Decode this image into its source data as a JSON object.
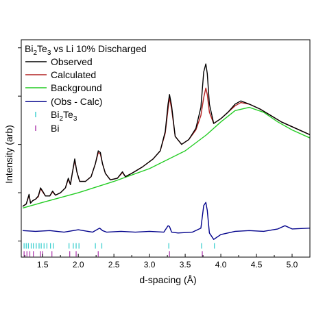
{
  "chart_data": {
    "type": "line",
    "title_parts": {
      "pre": "Bi",
      "sub1": "2",
      "mid": "Te",
      "sub2": "3",
      "post": " vs Li 10% Discharged"
    },
    "xlabel": "d-spacing (Å)",
    "ylabel": "Intensity (arb)",
    "xlim": [
      1.2,
      5.25
    ],
    "x_ticks": [
      1.5,
      2.0,
      2.5,
      3.0,
      3.5,
      4.0,
      4.5,
      5.0
    ],
    "x_tick_labels": [
      "1.5",
      "2.0",
      "2.5",
      "3.0",
      "3.5",
      "4.0",
      "4.5",
      "5.0"
    ],
    "ylim": [
      -3.0,
      10.5
    ],
    "grid": false,
    "legend_position": "top-left",
    "legend": [
      {
        "label": "Observed",
        "color": "#000000",
        "type": "line"
      },
      {
        "label": "Calculated",
        "color": "#b22222",
        "type": "line"
      },
      {
        "label": "Background",
        "color": "#22cc22",
        "type": "line"
      },
      {
        "label": "(Obs - Calc)",
        "color": "#00008b",
        "type": "line"
      },
      {
        "label_pre": "Bi",
        "label_sub1": "2",
        "label_mid": "Te",
        "label_sub2": "3",
        "color": "#40d0d0",
        "type": "tick"
      },
      {
        "label": "Bi",
        "color": "#b040b0",
        "type": "tick"
      }
    ],
    "series": [
      {
        "name": "Observed",
        "color": "#000000",
        "x": [
          1.22,
          1.27,
          1.31,
          1.33,
          1.36,
          1.4,
          1.44,
          1.47,
          1.5,
          1.54,
          1.6,
          1.64,
          1.68,
          1.75,
          1.82,
          1.86,
          1.89,
          1.92,
          1.95,
          1.98,
          2.02,
          2.1,
          2.18,
          2.24,
          2.28,
          2.31,
          2.34,
          2.38,
          2.45,
          2.55,
          2.62,
          2.66,
          2.75,
          2.9,
          3.05,
          3.15,
          3.22,
          3.26,
          3.28,
          3.31,
          3.36,
          3.45,
          3.55,
          3.65,
          3.72,
          3.76,
          3.79,
          3.81,
          3.84,
          3.9,
          4.0,
          4.1,
          4.2,
          4.28,
          4.4,
          4.55,
          4.7,
          4.85,
          5.0,
          5.15,
          5.25
        ],
        "y": [
          0.15,
          0.3,
          0.9,
          0.35,
          0.5,
          0.6,
          0.8,
          1.3,
          1.1,
          0.8,
          0.8,
          1.1,
          0.85,
          1.0,
          1.3,
          1.9,
          1.5,
          2.3,
          3.1,
          2.3,
          1.7,
          1.7,
          2.0,
          2.8,
          3.6,
          3.5,
          2.8,
          2.2,
          1.8,
          1.9,
          2.3,
          2.0,
          2.2,
          2.6,
          3.1,
          3.6,
          4.8,
          6.5,
          7.1,
          6.4,
          4.5,
          4.0,
          4.3,
          5.0,
          6.3,
          8.5,
          9.0,
          8.4,
          6.5,
          5.3,
          5.6,
          6.0,
          6.5,
          6.7,
          6.5,
          6.2,
          5.8,
          5.4,
          5.1,
          4.8,
          4.6
        ]
      },
      {
        "name": "Calculated",
        "color": "#b22222",
        "x": [
          1.22,
          1.27,
          1.31,
          1.33,
          1.36,
          1.4,
          1.44,
          1.47,
          1.5,
          1.54,
          1.6,
          1.64,
          1.68,
          1.75,
          1.82,
          1.86,
          1.89,
          1.92,
          1.95,
          1.98,
          2.02,
          2.1,
          2.18,
          2.24,
          2.28,
          2.31,
          2.34,
          2.38,
          2.45,
          2.55,
          2.62,
          2.66,
          2.75,
          2.9,
          3.05,
          3.15,
          3.22,
          3.26,
          3.28,
          3.31,
          3.36,
          3.45,
          3.55,
          3.65,
          3.72,
          3.76,
          3.79,
          3.81,
          3.84,
          3.9,
          4.0,
          4.1,
          4.2,
          4.28,
          4.4,
          4.55,
          4.7,
          4.85,
          5.0,
          5.15,
          5.25
        ],
        "y": [
          0.15,
          0.3,
          0.85,
          0.35,
          0.5,
          0.6,
          0.75,
          1.25,
          1.05,
          0.8,
          0.8,
          1.05,
          0.85,
          1.0,
          1.3,
          1.85,
          1.5,
          2.3,
          3.0,
          2.3,
          1.7,
          1.7,
          2.0,
          2.8,
          3.5,
          3.4,
          2.8,
          2.2,
          1.8,
          1.9,
          2.25,
          2.0,
          2.2,
          2.6,
          3.1,
          3.6,
          4.7,
          6.2,
          6.9,
          6.2,
          4.5,
          4.0,
          4.3,
          4.9,
          5.8,
          6.9,
          7.5,
          7.1,
          6.0,
          5.3,
          5.6,
          6.0,
          6.4,
          6.6,
          6.5,
          6.2,
          5.8,
          5.4,
          5.1,
          4.8,
          4.6
        ]
      },
      {
        "name": "Background",
        "color": "#22cc22",
        "x": [
          1.22,
          1.5,
          2.0,
          2.5,
          3.0,
          3.5,
          3.8,
          4.0,
          4.2,
          4.4,
          4.6,
          4.8,
          5.0,
          5.25
        ],
        "y": [
          0.05,
          0.4,
          1.0,
          1.7,
          2.5,
          3.6,
          4.6,
          5.4,
          6.1,
          6.3,
          6.0,
          5.4,
          4.9,
          4.4
        ]
      },
      {
        "name": "(Obs - Calc)",
        "color": "#00008b",
        "x": [
          1.22,
          1.4,
          1.6,
          1.8,
          2.0,
          2.2,
          2.3,
          2.34,
          2.4,
          2.6,
          2.8,
          3.0,
          3.2,
          3.26,
          3.28,
          3.31,
          3.4,
          3.6,
          3.72,
          3.76,
          3.79,
          3.81,
          3.84,
          3.9,
          4.0,
          4.2,
          4.4,
          4.6,
          4.8,
          4.9,
          5.0,
          5.25
        ],
        "y": [
          -1.35,
          -1.4,
          -1.35,
          -1.45,
          -1.3,
          -1.45,
          -1.2,
          -1.35,
          -1.45,
          -1.4,
          -1.45,
          -1.4,
          -1.45,
          -1.05,
          -1.1,
          -1.45,
          -1.5,
          -1.45,
          -1.2,
          0.2,
          0.4,
          -0.1,
          -1.5,
          -1.9,
          -1.6,
          -1.4,
          -1.35,
          -1.4,
          -1.25,
          -1.05,
          -1.25,
          -1.2
        ]
      }
    ],
    "reflection_ticks": [
      {
        "name": "Bi2Te3",
        "color": "#40d0d0",
        "level": -2.3,
        "x": [
          1.24,
          1.27,
          1.3,
          1.34,
          1.37,
          1.41,
          1.45,
          1.48,
          1.52,
          1.56,
          1.61,
          1.65,
          1.87,
          1.93,
          1.97,
          2.01,
          2.24,
          2.33,
          3.27,
          3.73,
          3.91
        ]
      },
      {
        "name": "Bi",
        "color": "#b040b0",
        "level": -2.8,
        "x": [
          1.24,
          1.28,
          1.32,
          1.37,
          1.47,
          1.5,
          1.63,
          1.88,
          1.97,
          2.28,
          3.28,
          3.74
        ]
      }
    ]
  }
}
